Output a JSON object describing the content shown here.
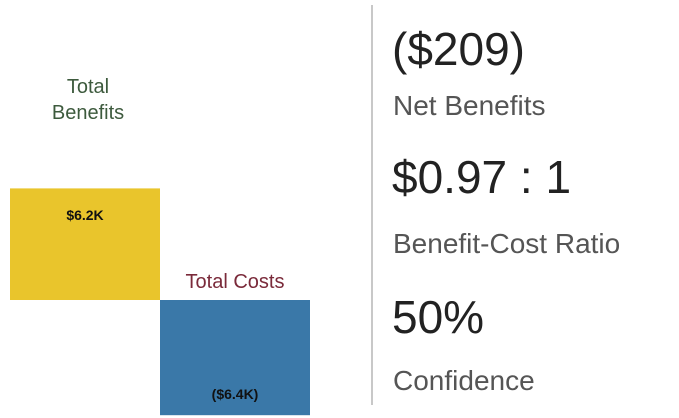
{
  "chart_data": {
    "type": "bar",
    "categories": [
      "Total Benefits",
      "Total Costs"
    ],
    "values": [
      6.2,
      -6.4
    ],
    "value_labels": [
      "$6.2K",
      "($6.4K)"
    ],
    "colors": [
      "#E9C52C",
      "#3A78A8"
    ],
    "label_colors": [
      "#3d5a3d",
      "#7a2a3a"
    ]
  },
  "kpis": [
    {
      "value": "($209)",
      "label": "Net Benefits"
    },
    {
      "value": "$0.97 : 1",
      "label": "Benefit-Cost Ratio"
    },
    {
      "value": "50%",
      "label": "Confidence"
    }
  ]
}
